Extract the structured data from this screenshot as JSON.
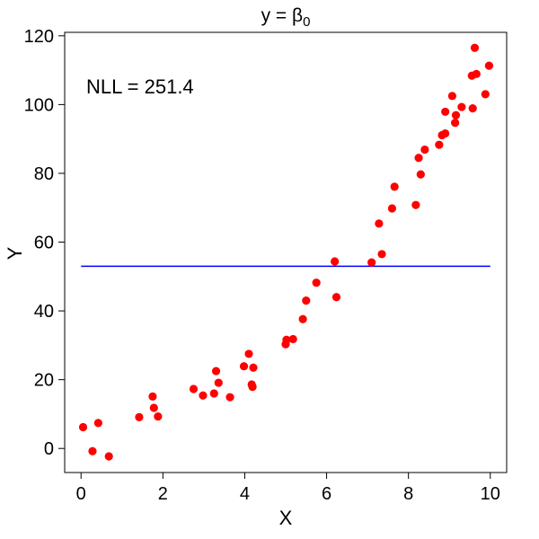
{
  "chart_data": {
    "type": "scatter",
    "title": "y = β",
    "title_subscript": "0",
    "xlabel": "X",
    "ylabel": "Y",
    "xlim": [
      -0.4,
      10.4
    ],
    "ylim": [
      -7,
      121
    ],
    "xticks": [
      0,
      2,
      4,
      6,
      8,
      10
    ],
    "yticks": [
      0,
      20,
      40,
      60,
      80,
      100,
      120
    ],
    "grid": false,
    "annotation": "NLL = 251.4",
    "point_color": "#ff0000",
    "line_color": "#0000ff",
    "fit_line": {
      "x": [
        0,
        10
      ],
      "y": [
        53,
        53
      ]
    },
    "points": [
      {
        "x": 0.05,
        "y": 6.2
      },
      {
        "x": 0.28,
        "y": -0.8
      },
      {
        "x": 0.42,
        "y": 7.4
      },
      {
        "x": 0.68,
        "y": -2.3
      },
      {
        "x": 1.42,
        "y": 9.1
      },
      {
        "x": 1.75,
        "y": 15.1
      },
      {
        "x": 1.78,
        "y": 11.8
      },
      {
        "x": 1.88,
        "y": 9.3
      },
      {
        "x": 2.75,
        "y": 17.3
      },
      {
        "x": 2.98,
        "y": 15.4
      },
      {
        "x": 3.25,
        "y": 16.0
      },
      {
        "x": 3.3,
        "y": 22.5
      },
      {
        "x": 3.36,
        "y": 19.1
      },
      {
        "x": 3.64,
        "y": 14.9
      },
      {
        "x": 3.98,
        "y": 23.9
      },
      {
        "x": 4.1,
        "y": 27.5
      },
      {
        "x": 4.17,
        "y": 18.6
      },
      {
        "x": 4.19,
        "y": 17.9
      },
      {
        "x": 4.21,
        "y": 23.5
      },
      {
        "x": 5.0,
        "y": 30.3
      },
      {
        "x": 5.02,
        "y": 31.6
      },
      {
        "x": 5.18,
        "y": 31.8
      },
      {
        "x": 5.42,
        "y": 37.6
      },
      {
        "x": 5.5,
        "y": 43.0
      },
      {
        "x": 5.75,
        "y": 48.2
      },
      {
        "x": 6.2,
        "y": 54.4
      },
      {
        "x": 6.24,
        "y": 44.0
      },
      {
        "x": 7.1,
        "y": 54.1
      },
      {
        "x": 7.28,
        "y": 65.4
      },
      {
        "x": 7.35,
        "y": 56.5
      },
      {
        "x": 7.6,
        "y": 69.8
      },
      {
        "x": 7.66,
        "y": 76.1
      },
      {
        "x": 8.18,
        "y": 70.8
      },
      {
        "x": 8.25,
        "y": 84.5
      },
      {
        "x": 8.3,
        "y": 79.7
      },
      {
        "x": 8.4,
        "y": 86.9
      },
      {
        "x": 8.75,
        "y": 88.3
      },
      {
        "x": 8.82,
        "y": 91.1
      },
      {
        "x": 8.9,
        "y": 91.6
      },
      {
        "x": 8.9,
        "y": 97.9
      },
      {
        "x": 9.07,
        "y": 102.5
      },
      {
        "x": 9.14,
        "y": 94.7
      },
      {
        "x": 9.16,
        "y": 96.9
      },
      {
        "x": 9.3,
        "y": 99.3
      },
      {
        "x": 9.55,
        "y": 108.4
      },
      {
        "x": 9.57,
        "y": 98.9
      },
      {
        "x": 9.62,
        "y": 116.5
      },
      {
        "x": 9.66,
        "y": 108.9
      },
      {
        "x": 9.88,
        "y": 103.0
      },
      {
        "x": 9.97,
        "y": 111.3
      }
    ]
  }
}
